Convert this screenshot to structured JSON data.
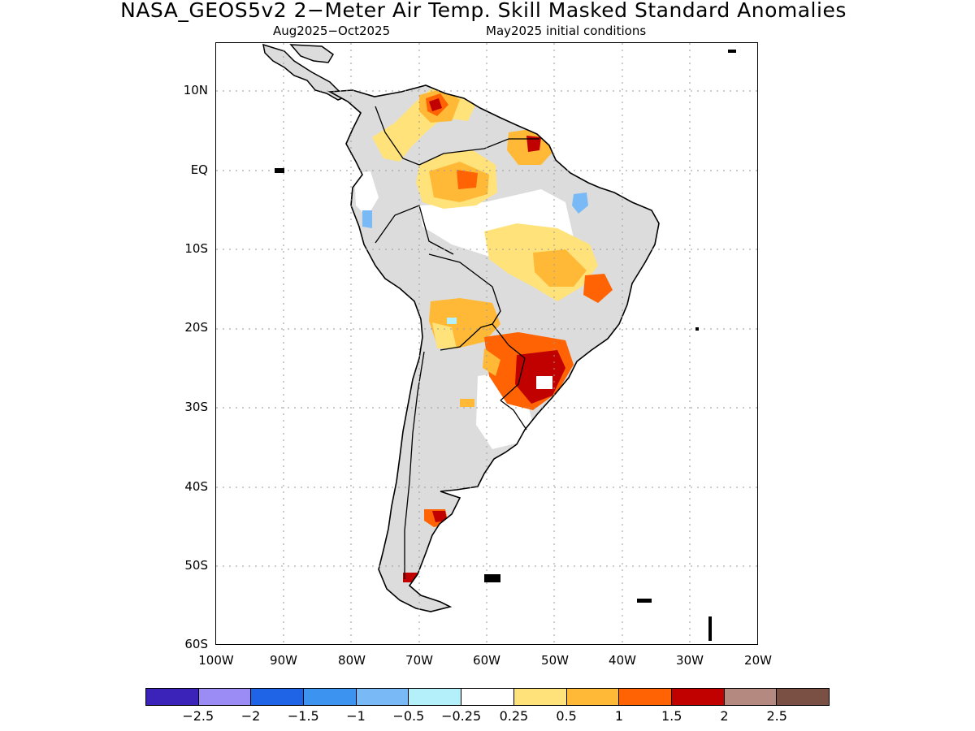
{
  "header": {
    "title": "NASA_GEOS5v2 2−Meter Air Temp. Skill Masked Standard Anomalies",
    "valid_period": "Aug2025−Oct2025",
    "init": "May2025 initial conditions"
  },
  "axes": {
    "lat_labels": [
      "10N",
      "EQ",
      "10S",
      "20S",
      "30S",
      "40S",
      "50S",
      "60S"
    ],
    "lon_labels": [
      "100W",
      "90W",
      "80W",
      "70W",
      "60W",
      "50W",
      "40W",
      "30W",
      "20W"
    ]
  },
  "legend": {
    "labels": [
      "−2.5",
      "−2",
      "−1.5",
      "−1",
      "−0.5",
      "−0.25",
      "0.25",
      "0.5",
      "1",
      "1.5",
      "2",
      "2.5"
    ],
    "colors": [
      "#3b22b8",
      "#9b8cf5",
      "#1f64e6",
      "#3d93f0",
      "#78b9f6",
      "#b4f0fa",
      "#ffffff",
      "#ffe37a",
      "#ffb937",
      "#ff6303",
      "#c10000",
      "#b48a80",
      "#7b5044"
    ]
  },
  "map": {
    "colors": {
      "land_masked": "#dcdcdc",
      "coast": "#000000",
      "grid": "#9a9a9a",
      "anomaly_0.5": "#ffe37a",
      "anomaly_1": "#ffb937",
      "anomaly_1.5": "#ff6303",
      "anomaly_2": "#c10000",
      "anomaly_neg_0.5": "#78b9f6",
      "anomaly_neg_0.25": "#b4f0fa"
    }
  }
}
